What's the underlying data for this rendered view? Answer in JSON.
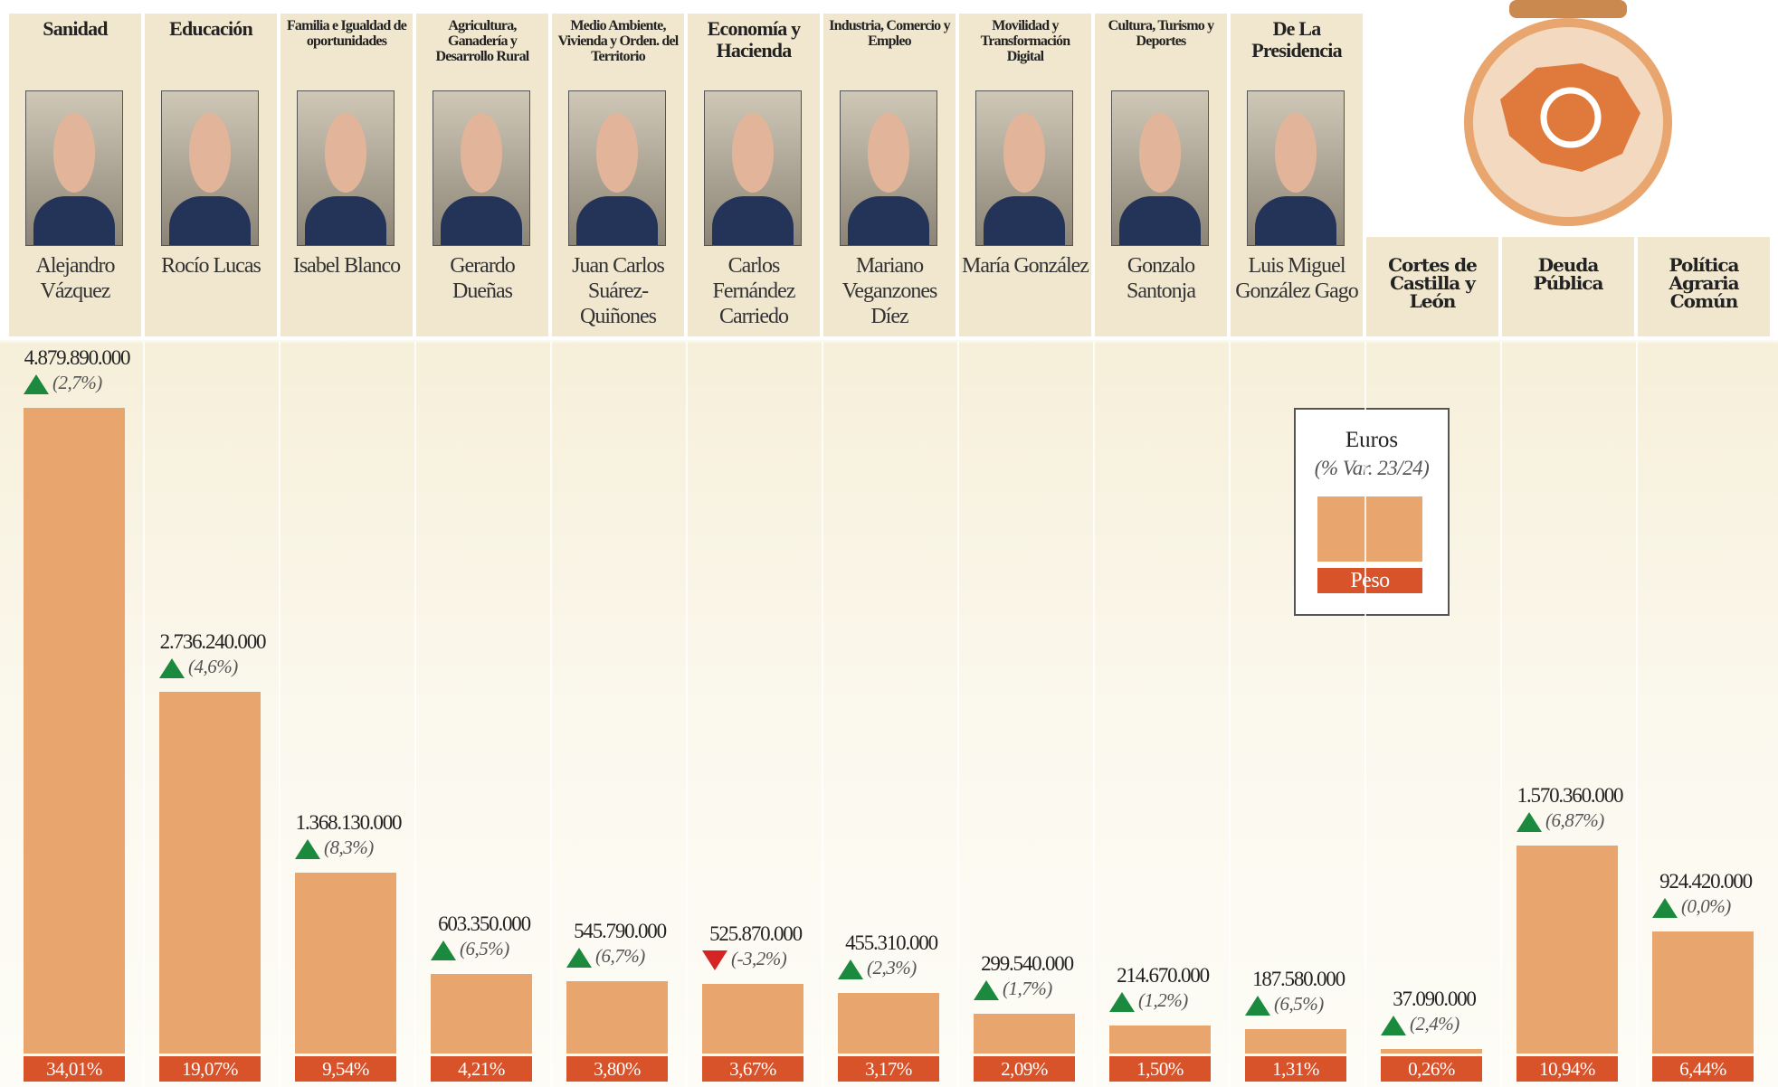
{
  "chart_data": {
    "type": "bar",
    "categories": [
      "Sanidad",
      "Educación",
      "Familia e Igualdad de oportunidades",
      "Agricultura, Ganadería y Desarrollo Rural",
      "Medio Ambiente, Vivienda y Orden. del Territorio",
      "Economía y Hacienda",
      "Industria, Comercio y Empleo",
      "Movilidad y Transformación Digital",
      "Cultura, Turismo y Deportes",
      "De La Presidencia",
      "Cortes de Castilla y León",
      "Deuda Pública",
      "Política Agraria Común"
    ],
    "persons": [
      "Alejandro Vázquez",
      "Rocío Lucas",
      "Isabel Blanco",
      "Gerardo Dueñas",
      "Juan Carlos Suárez-Quiñones",
      "Carlos Fernández Carriedo",
      "Mariano Veganzones Díez",
      "María González",
      "Gonzalo Santonja",
      "Luis Miguel González Gago",
      null,
      null,
      null
    ],
    "values": [
      4879890000,
      2736240000,
      1368130000,
      603350000,
      545790000,
      525870000,
      455310000,
      299540000,
      214670000,
      187580000,
      37090000,
      1570360000,
      924420000
    ],
    "value_labels": [
      "4.879.890.000",
      "2.736.240.000",
      "1.368.130.000",
      "603.350.000",
      "545.790.000",
      "525.870.000",
      "455.310.000",
      "299.540.000",
      "214.670.000",
      "187.580.000",
      "37.090.000",
      "1.570.360.000",
      "924.420.000"
    ],
    "change": {
      "values": [
        2.7,
        4.6,
        8.3,
        6.5,
        6.7,
        -3.2,
        2.3,
        1.7,
        1.2,
        6.5,
        2.4,
        6.87,
        0.0
      ],
      "labels": [
        "(2,7%)",
        "(4,6%)",
        "(8,3%)",
        "(6,5%)",
        "(6,7%)",
        "(-3,2%)",
        "(2,3%)",
        "(1,7%)",
        "(1,2%)",
        "(6,5%)",
        "(2,4%)",
        "(6,87%)",
        "(0,0%)"
      ]
    },
    "share": {
      "values": [
        34.01,
        19.07,
        9.54,
        4.21,
        3.8,
        3.67,
        3.17,
        2.09,
        1.5,
        1.31,
        0.26,
        10.94,
        6.44
      ],
      "labels": [
        "34,01%",
        "19,07%",
        "9,54%",
        "4,21%",
        "3,80%",
        "3,67%",
        "3,17%",
        "2,09%",
        "1,50%",
        "1,31%",
        "0,26%",
        "10,94%",
        "6,44%"
      ]
    },
    "color": "#e8a56e",
    "share_color": "#d8522a",
    "up_color": "#1b8a3e",
    "down_color": "#d42424",
    "legend": {
      "title": "Euros",
      "subtitle": "(% Var. 23/24)",
      "share": "Peso"
    }
  }
}
